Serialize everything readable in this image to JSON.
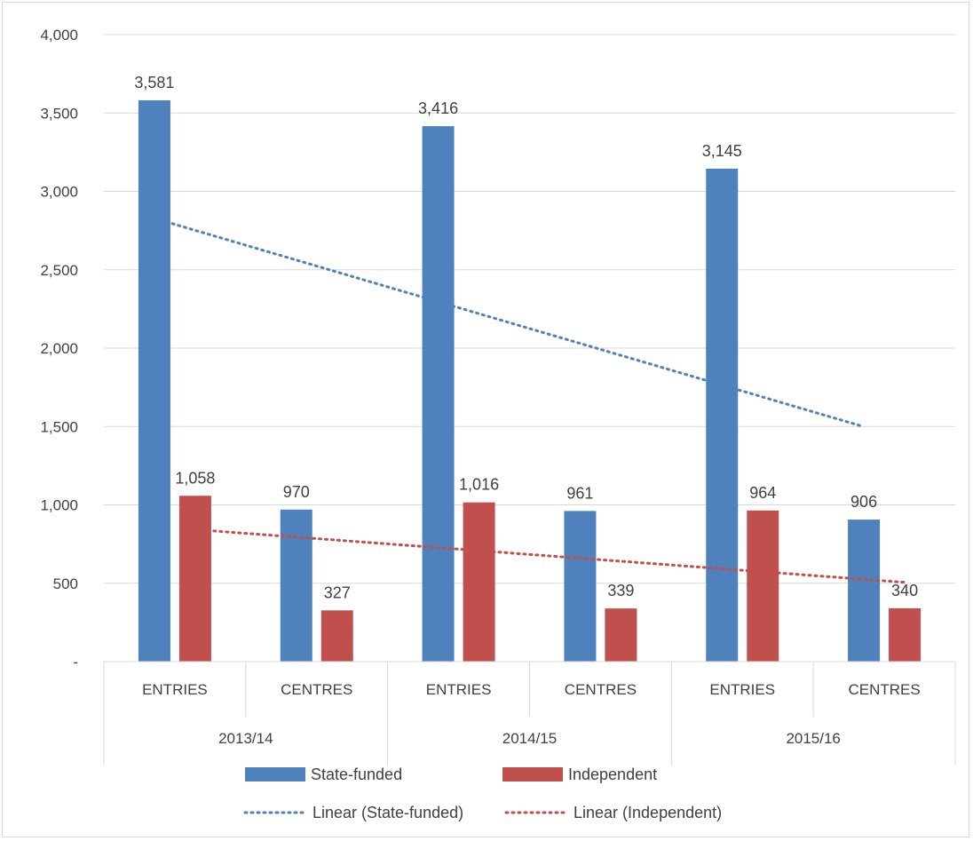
{
  "chart_data": {
    "type": "bar",
    "groups": [
      "2013/14",
      "2014/15",
      "2015/16"
    ],
    "subcategories": [
      "ENTRIES",
      "CENTRES"
    ],
    "categories": [
      "ENTRIES",
      "CENTRES",
      "ENTRIES",
      "CENTRES",
      "ENTRIES",
      "CENTRES"
    ],
    "series": [
      {
        "name": "State-funded",
        "color": "#4f81bd",
        "values": [
          3581,
          970,
          3416,
          961,
          3145,
          906
        ]
      },
      {
        "name": "Independent",
        "color": "#c0504d",
        "values": [
          1058,
          327,
          1016,
          339,
          964,
          340
        ]
      }
    ],
    "value_labels": {
      "State-funded": [
        "3,581",
        "970",
        "3,416",
        "961",
        "3,145",
        "906"
      ],
      "Independent": [
        "1,058",
        "327",
        "1,016",
        "339",
        "964",
        "340"
      ]
    },
    "trendlines": [
      {
        "name": "Linear (State-funded)",
        "series": "State-funded",
        "style": "dotted",
        "color": "#4f81bd"
      },
      {
        "name": "Linear (Independent)",
        "series": "Independent",
        "style": "dotted",
        "color": "#c0504d"
      }
    ],
    "ylim": [
      0,
      4000
    ],
    "yticks": [
      0,
      500,
      1000,
      1500,
      2000,
      2500,
      3000,
      3500,
      4000
    ],
    "ytick_labels": [
      "-",
      "500",
      "1,000",
      "1,500",
      "2,000",
      "2,500",
      "3,000",
      "3,500",
      "4,000"
    ],
    "title": "",
    "xlabel": "",
    "ylabel": "",
    "grid": true,
    "legend_position": "bottom"
  }
}
